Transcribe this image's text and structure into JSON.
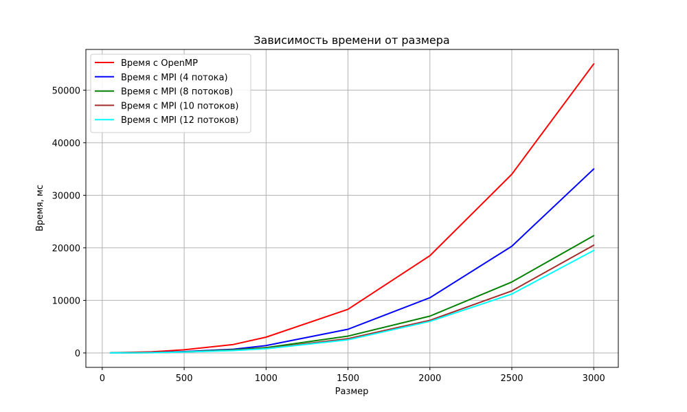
{
  "chart_data": {
    "type": "line",
    "title": "Зависимость времени от размера",
    "xlabel": "Размер",
    "ylabel": "Время, мс",
    "xlim": [
      -100,
      3150
    ],
    "ylim": [
      -2750,
      57750
    ],
    "xticks": [
      0,
      500,
      1000,
      1500,
      2000,
      2500,
      3000
    ],
    "yticks": [
      0,
      10000,
      20000,
      30000,
      40000,
      50000
    ],
    "grid": true,
    "legend_position": "top-left",
    "x": [
      50,
      300,
      500,
      800,
      1000,
      1500,
      2000,
      2500,
      3000
    ],
    "series": [
      {
        "name": "Время с OpenMP",
        "color": "#ff0000",
        "values": [
          20,
          200,
          600,
          1600,
          3000,
          8300,
          18500,
          34000,
          55000
        ]
      },
      {
        "name": "Время с MPI (4 потока)",
        "color": "#0000ff",
        "values": [
          10,
          80,
          250,
          700,
          1400,
          4500,
          10500,
          20300,
          35000
        ]
      },
      {
        "name": "Время с MPI (8 потоков)",
        "color": "#008000",
        "values": [
          10,
          60,
          200,
          600,
          1000,
          3200,
          7000,
          13500,
          22300
        ]
      },
      {
        "name": "Время с MPI (10 потоков)",
        "color": "#a52a2a",
        "values": [
          10,
          50,
          180,
          500,
          850,
          2700,
          6200,
          11800,
          20500
        ]
      },
      {
        "name": "Время с MPI (12 потоков)",
        "color": "#00ffff",
        "values": [
          10,
          50,
          170,
          450,
          800,
          2500,
          6000,
          11200,
          19500
        ]
      }
    ]
  }
}
